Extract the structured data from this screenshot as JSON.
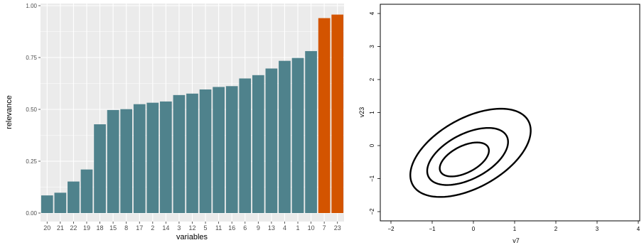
{
  "chart_data": [
    {
      "type": "bar",
      "xlabel": "variables",
      "ylabel": "relevance",
      "ylim": [
        0,
        1
      ],
      "yticks": [
        "0.00",
        "0.25",
        "0.50",
        "0.75",
        "1.00"
      ],
      "ytick_values": [
        0,
        0.25,
        0.5,
        0.75,
        1
      ],
      "categories": [
        "20",
        "21",
        "22",
        "19",
        "18",
        "15",
        "8",
        "17",
        "2",
        "14",
        "3",
        "12",
        "5",
        "11",
        "16",
        "6",
        "9",
        "13",
        "4",
        "1",
        "10",
        "7",
        "23"
      ],
      "values": [
        0.085,
        0.098,
        0.152,
        0.21,
        0.428,
        0.497,
        0.501,
        0.525,
        0.532,
        0.538,
        0.569,
        0.576,
        0.596,
        0.608,
        0.612,
        0.649,
        0.665,
        0.697,
        0.734,
        0.748,
        0.781,
        0.94,
        0.957
      ],
      "highlighted": [
        "7",
        "23"
      ],
      "grid": true,
      "colors": {
        "bar": "#4F828C",
        "highlight": "#D35400",
        "panel": "#EBEBEB",
        "gridline": "#FFFFFF"
      }
    },
    {
      "type": "contour",
      "xlabel": "v7",
      "ylabel": "v23",
      "xlim": [
        -2.2,
        4.2
      ],
      "ylim": [
        -2.2,
        4.2
      ],
      "xticks": [
        -2,
        -1,
        0,
        1,
        2,
        3,
        4
      ],
      "yticks": [
        -2,
        -1,
        0,
        1,
        2,
        3,
        4
      ],
      "tick_labels": {
        "-2": "−2",
        "-1": "−1",
        "0": "0",
        "1": "1",
        "2": "2",
        "3": "3",
        "4": "4"
      },
      "contours": [
        {
          "center": [
            -0.07,
            -0.22
          ],
          "semi_axes": [
            1.72,
            0.98
          ],
          "angle_deg": 40
        },
        {
          "center": [
            -0.14,
            -0.33
          ],
          "semi_axes": [
            1.14,
            0.64
          ],
          "angle_deg": 38
        },
        {
          "center": [
            -0.22,
            -0.42
          ],
          "semi_axes": [
            0.69,
            0.38
          ],
          "angle_deg": 37
        }
      ],
      "grid": false,
      "colors": {
        "line": "#000000"
      }
    }
  ]
}
